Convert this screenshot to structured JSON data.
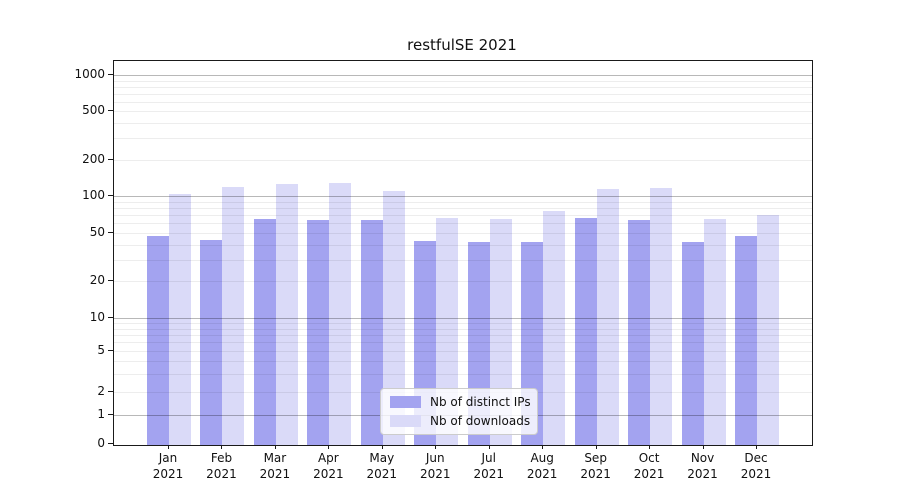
{
  "title": "restfulSE 2021",
  "legend": {
    "items": [
      {
        "label": "Nb of distinct IPs",
        "color": "#a3a3f0"
      },
      {
        "label": "Nb of downloads",
        "color": "#dadaf8"
      }
    ]
  },
  "chart_data": {
    "type": "bar",
    "title": "restfulSE 2021",
    "categories": [
      "Jan 2021",
      "Feb 2021",
      "Mar 2021",
      "Apr 2021",
      "May 2021",
      "Jun 2021",
      "Jul 2021",
      "Aug 2021",
      "Sep 2021",
      "Oct 2021",
      "Nov 2021",
      "Dec 2021"
    ],
    "series": [
      {
        "name": "Nb of distinct IPs",
        "color": "#a3a3f0",
        "values": [
          47,
          44,
          65,
          63,
          63,
          43,
          42,
          42,
          66,
          63,
          42,
          47
        ]
      },
      {
        "name": "Nb of downloads",
        "color": "#dadaf8",
        "values": [
          103,
          119,
          126,
          128,
          109,
          66,
          65,
          76,
          115,
          117,
          65,
          70
        ]
      }
    ],
    "xlabel": "",
    "ylabel": "",
    "yscale": "symlog",
    "ylim": [
      0,
      1300
    ],
    "yticks": [
      "0",
      "1",
      "2",
      "5",
      "10",
      "20",
      "50",
      "100",
      "200",
      "500",
      "1000"
    ],
    "grid": "horizontal, major and minor, drawn over semi-transparent bars",
    "legend_position": "lower center inside plot"
  }
}
